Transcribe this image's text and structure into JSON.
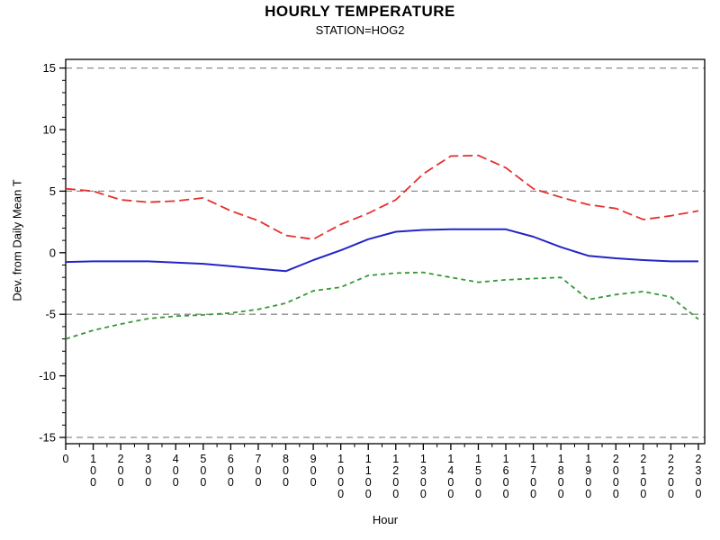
{
  "title": "HOURLY TEMPERATURE",
  "subtitle": "STATION=HOG2",
  "chart_data": {
    "type": "line",
    "xlabel": "Hour",
    "ylabel": "Dev. from Daily Mean T",
    "x": [
      0,
      1,
      2,
      3,
      4,
      5,
      6,
      7,
      8,
      9,
      10,
      11,
      12,
      13,
      14,
      15,
      16,
      17,
      18,
      19,
      20,
      21,
      22,
      23
    ],
    "x_tick_labels": [
      "0",
      "100",
      "200",
      "300",
      "400",
      "500",
      "600",
      "700",
      "800",
      "900",
      "1000",
      "1100",
      "1200",
      "1300",
      "1400",
      "1500",
      "1600",
      "1700",
      "1800",
      "1900",
      "2000",
      "2100",
      "2200",
      "2300"
    ],
    "ylim": [
      -15.5,
      15.6
    ],
    "y_major_ticks": [
      15,
      10,
      5,
      0,
      -5,
      -10,
      -15
    ],
    "y_minor_tick_step": 1,
    "x_minor_tick_step": 0.5,
    "gridlines_at": [
      15,
      5,
      -5,
      -15
    ],
    "grid_on": true,
    "grid_color": "#8c8c8c",
    "legend_position": "none",
    "frame_color": "#000000",
    "series": [
      {
        "name": "red-dashed-line",
        "color": "#e62e2e",
        "style": "dashed",
        "values": [
          5.2,
          5.0,
          4.3,
          4.1,
          4.2,
          4.45,
          3.4,
          2.6,
          1.4,
          1.1,
          2.3,
          3.2,
          4.3,
          6.4,
          7.85,
          7.9,
          6.9,
          5.2,
          4.5,
          3.9,
          3.6,
          2.7,
          3.0,
          3.4
        ]
      },
      {
        "name": "blue-solid-line",
        "color": "#2424c8",
        "style": "solid",
        "values": [
          -0.75,
          -0.7,
          -0.7,
          -0.7,
          -0.8,
          -0.9,
          -1.1,
          -1.3,
          -1.5,
          -0.6,
          0.2,
          1.1,
          1.7,
          1.85,
          1.9,
          1.9,
          1.9,
          1.3,
          0.45,
          -0.25,
          -0.45,
          -0.6,
          -0.7,
          -0.7
        ]
      },
      {
        "name": "green-short-dashed-line",
        "color": "#339933",
        "style": "short-dashed",
        "values": [
          -7.0,
          -6.3,
          -5.8,
          -5.35,
          -5.15,
          -5.05,
          -4.9,
          -4.6,
          -4.1,
          -3.1,
          -2.8,
          -1.85,
          -1.65,
          -1.6,
          -2.0,
          -2.4,
          -2.2,
          -2.1,
          -2.0,
          -3.8,
          -3.4,
          -3.15,
          -3.6,
          -5.4
        ]
      }
    ]
  }
}
